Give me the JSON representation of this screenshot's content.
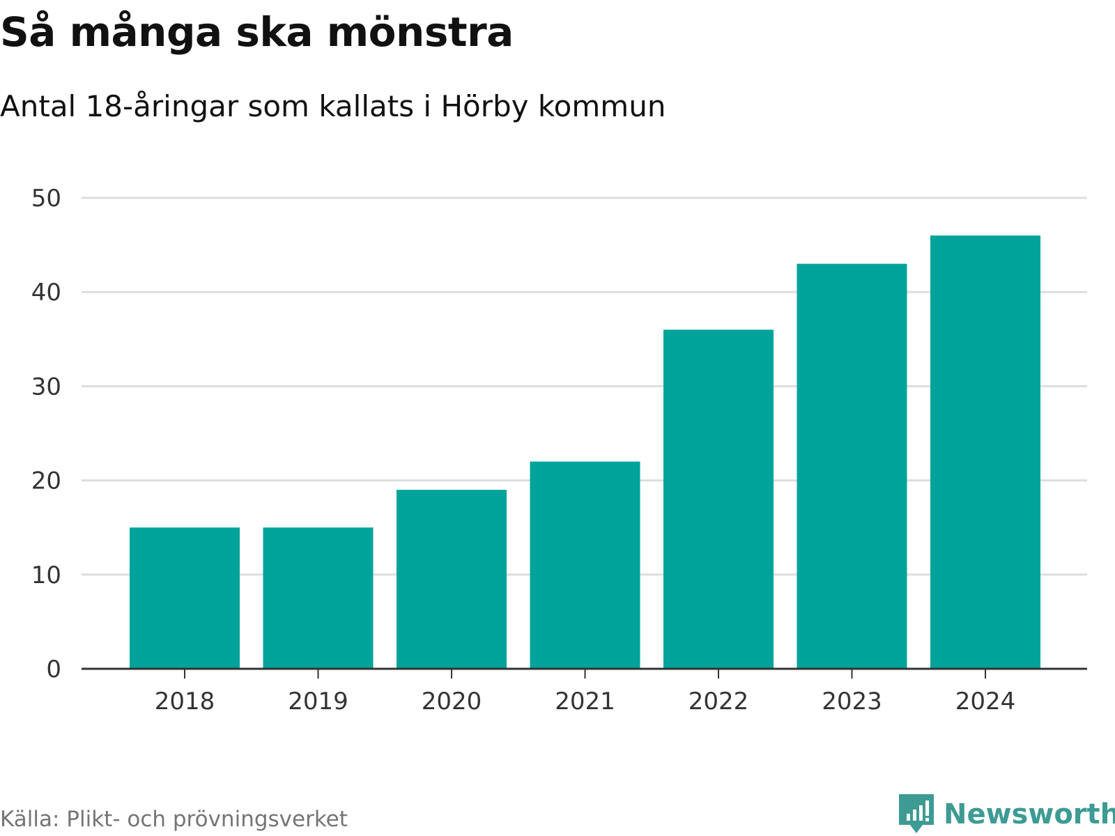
{
  "header": {
    "title": "Så många ska mönstra",
    "subtitle": "Antal 18-åringar som kallats i Hörby kommun"
  },
  "chart_data": {
    "type": "bar",
    "title": "Så många ska mönstra",
    "subtitle": "Antal 18-åringar som kallats i Hörby kommun",
    "categories": [
      "2018",
      "2019",
      "2020",
      "2021",
      "2022",
      "2023",
      "2024"
    ],
    "values": [
      15,
      15,
      19,
      22,
      36,
      43,
      46
    ],
    "xlabel": "",
    "ylabel": "",
    "ylim": [
      0,
      50
    ],
    "yticks": [
      0,
      10,
      20,
      30,
      40,
      50
    ],
    "grid": true,
    "bar_color": "#00a39a"
  },
  "footer": {
    "source": "Källa: Plikt- och prövningsverket",
    "brand": "Newsworthy",
    "brand_icon": "newsworthy-logo-icon",
    "brand_color": "#3d9b93"
  }
}
